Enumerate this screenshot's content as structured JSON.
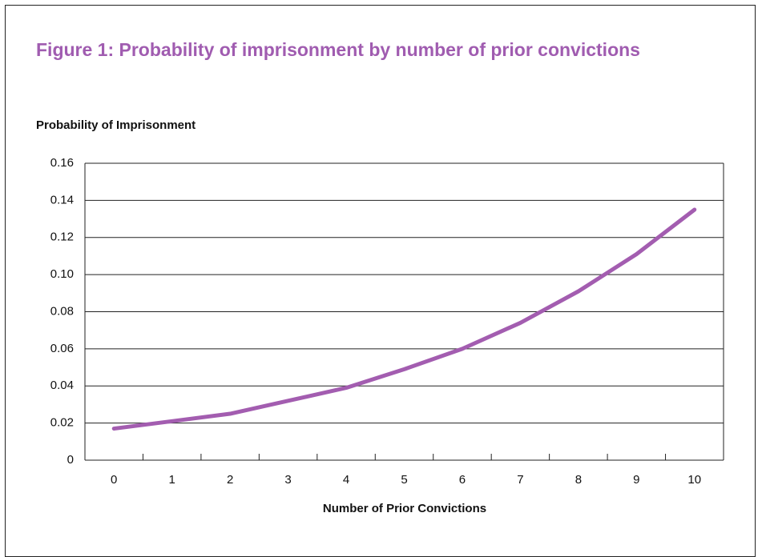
{
  "chart_data": {
    "type": "line",
    "title": "Figure 1: Probability of imprisonment by number of prior convictions",
    "y_label": "Probability of Imprisonment",
    "x_label": "Number of Prior Convictions",
    "categories": [
      "0",
      "1",
      "2",
      "3",
      "4",
      "5",
      "6",
      "7",
      "8",
      "9",
      "10"
    ],
    "values": [
      0.017,
      0.021,
      0.025,
      0.032,
      0.039,
      0.049,
      0.06,
      0.074,
      0.091,
      0.111,
      0.135
    ],
    "color": "#a35db0",
    "ylim": [
      0,
      0.16
    ],
    "yticks": [
      0,
      0.02,
      0.04,
      0.06,
      0.08,
      {
        "value": 0.1,
        "label": "0.10"
      },
      0.12,
      0.14,
      0.16
    ],
    "grid": true
  }
}
